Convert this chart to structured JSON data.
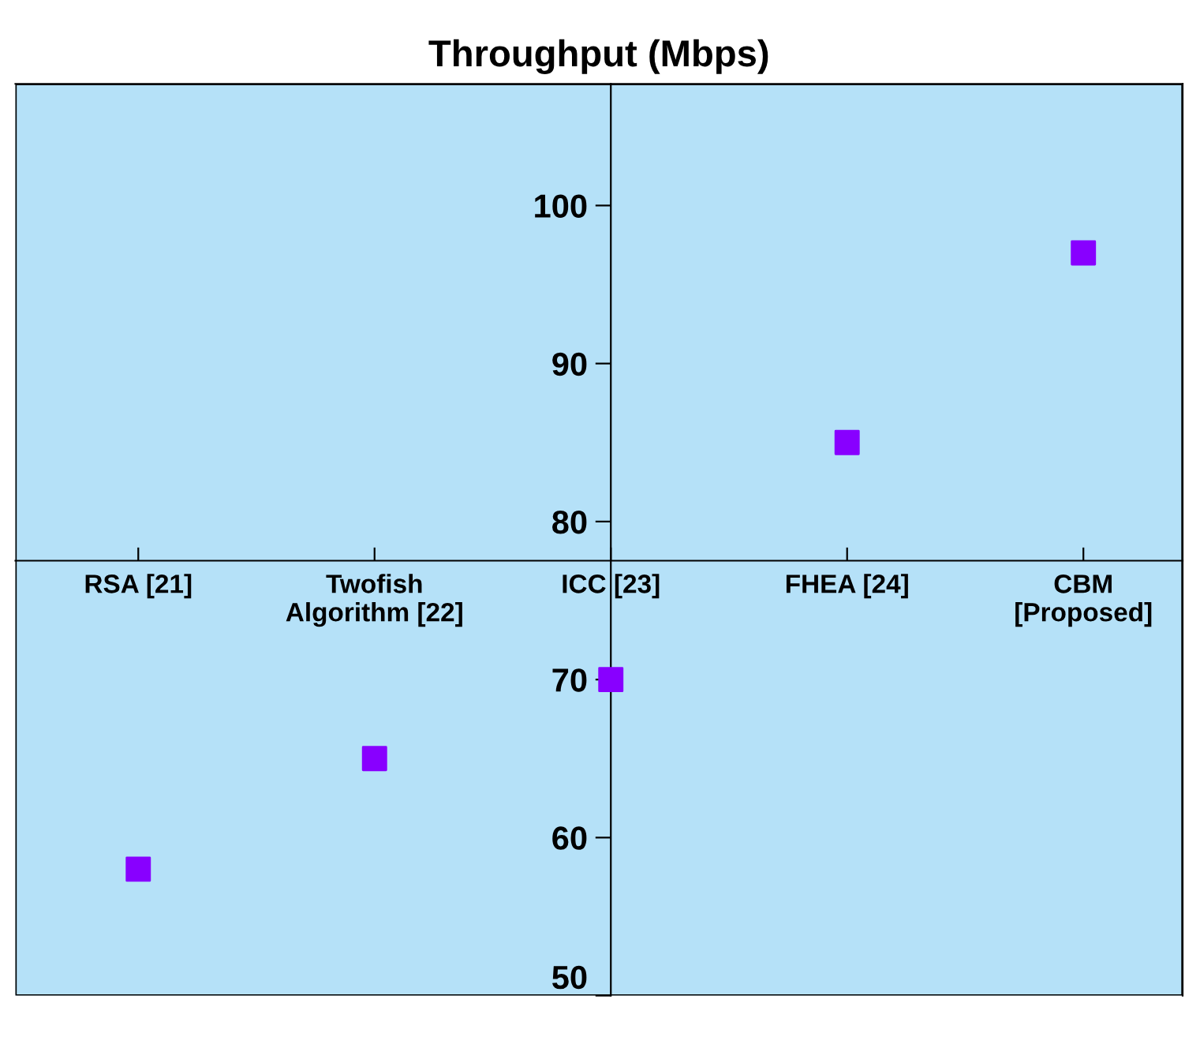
{
  "chart_data": {
    "type": "scatter",
    "title": "Throughput (Mbps)",
    "categories": [
      "RSA [21]",
      "Twofish\nAlgorithm [22]",
      "ICC [23]",
      "FHEA [24]",
      "CBM\n[Proposed]"
    ],
    "series": [
      {
        "color": "#8800ff",
        "values": [
          58,
          65,
          70,
          85,
          97
        ]
      }
    ],
    "marker": "square",
    "ylim": [
      50,
      107.7
    ],
    "yticks": [
      50,
      60,
      70,
      80,
      90,
      100
    ],
    "grid": false,
    "legend": false
  }
}
